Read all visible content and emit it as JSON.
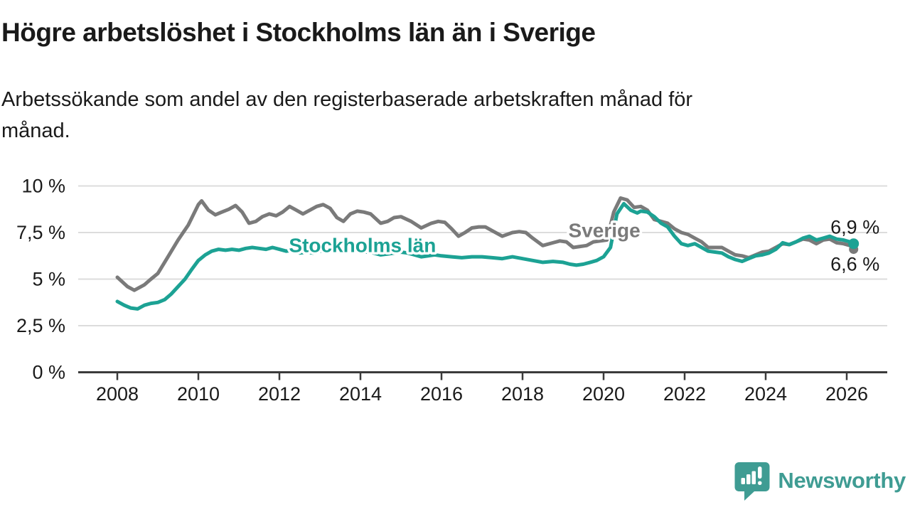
{
  "chart_data": {
    "type": "line",
    "title": "Högre arbetslöshet i Stockholms län än i Sverige",
    "subtitle": "Arbetssökande som andel av den registerbaserade arbetskraften månad för månad.",
    "subtitle_lines": [
      "Arbetssökande som andel av den registerbaserade arbetskraften månad för",
      "månad."
    ],
    "ylim": [
      0,
      10
    ],
    "xlim": [
      2007.04,
      2027.04
    ],
    "grid": true,
    "legend_position": "inline-labels-on-lines",
    "y_ticks": [
      {
        "value": 0,
        "label": "0 %"
      },
      {
        "value": 2.5,
        "label": "2,5 %"
      },
      {
        "value": 5,
        "label": "5 %"
      },
      {
        "value": 7.5,
        "label": "7,5 %"
      },
      {
        "value": 10,
        "label": "10 %"
      }
    ],
    "x_ticks": [
      {
        "value": 2008,
        "label": "2008"
      },
      {
        "value": 2010,
        "label": "2010"
      },
      {
        "value": 2012,
        "label": "2012"
      },
      {
        "value": 2014,
        "label": "2014"
      },
      {
        "value": 2016,
        "label": "2016"
      },
      {
        "value": 2018,
        "label": "2018"
      },
      {
        "value": 2020,
        "label": "2020"
      },
      {
        "value": 2022,
        "label": "2022"
      },
      {
        "value": 2024,
        "label": "2024"
      },
      {
        "value": 2026,
        "label": "2026"
      }
    ],
    "colors": {
      "sverige_line": "#7a7a7a",
      "stockholm_line": "#1ca294",
      "grid": "#dcdcdc",
      "axis": "#3b3b3b",
      "text": "#1a1a1a"
    },
    "series": [
      {
        "name": "Sverige",
        "color": "#7a7a7a",
        "end_label": "6,6 %",
        "end_value": 6.6,
        "label_anchor": {
          "t": 2020.02,
          "v": 7.6
        },
        "points": [
          [
            2008.0,
            5.1
          ],
          [
            2008.25,
            4.6
          ],
          [
            2008.42,
            4.4
          ],
          [
            2008.67,
            4.7
          ],
          [
            2008.83,
            5.0
          ],
          [
            2009.0,
            5.3
          ],
          [
            2009.25,
            6.2
          ],
          [
            2009.5,
            7.1
          ],
          [
            2009.75,
            7.9
          ],
          [
            2010.0,
            9.0
          ],
          [
            2010.08,
            9.2
          ],
          [
            2010.25,
            8.7
          ],
          [
            2010.42,
            8.45
          ],
          [
            2010.58,
            8.6
          ],
          [
            2010.75,
            8.75
          ],
          [
            2010.92,
            8.95
          ],
          [
            2011.08,
            8.6
          ],
          [
            2011.25,
            8.0
          ],
          [
            2011.42,
            8.1
          ],
          [
            2011.58,
            8.35
          ],
          [
            2011.75,
            8.5
          ],
          [
            2011.92,
            8.4
          ],
          [
            2012.08,
            8.6
          ],
          [
            2012.25,
            8.9
          ],
          [
            2012.42,
            8.7
          ],
          [
            2012.58,
            8.5
          ],
          [
            2012.75,
            8.7
          ],
          [
            2012.92,
            8.9
          ],
          [
            2013.08,
            9.0
          ],
          [
            2013.25,
            8.8
          ],
          [
            2013.42,
            8.3
          ],
          [
            2013.58,
            8.1
          ],
          [
            2013.75,
            8.5
          ],
          [
            2013.92,
            8.65
          ],
          [
            2014.08,
            8.6
          ],
          [
            2014.25,
            8.5
          ],
          [
            2014.5,
            8.0
          ],
          [
            2014.67,
            8.1
          ],
          [
            2014.83,
            8.3
          ],
          [
            2015.0,
            8.35
          ],
          [
            2015.25,
            8.1
          ],
          [
            2015.5,
            7.75
          ],
          [
            2015.75,
            8.0
          ],
          [
            2015.92,
            8.1
          ],
          [
            2016.08,
            8.05
          ],
          [
            2016.25,
            7.7
          ],
          [
            2016.42,
            7.3
          ],
          [
            2016.58,
            7.5
          ],
          [
            2016.75,
            7.75
          ],
          [
            2016.92,
            7.8
          ],
          [
            2017.08,
            7.8
          ],
          [
            2017.25,
            7.6
          ],
          [
            2017.5,
            7.3
          ],
          [
            2017.75,
            7.5
          ],
          [
            2017.92,
            7.55
          ],
          [
            2018.08,
            7.5
          ],
          [
            2018.25,
            7.2
          ],
          [
            2018.5,
            6.8
          ],
          [
            2018.75,
            6.95
          ],
          [
            2018.92,
            7.05
          ],
          [
            2019.08,
            7.0
          ],
          [
            2019.25,
            6.7
          ],
          [
            2019.42,
            6.75
          ],
          [
            2019.58,
            6.8
          ],
          [
            2019.75,
            7.0
          ],
          [
            2019.92,
            7.05
          ],
          [
            2020.08,
            7.1
          ],
          [
            2020.25,
            8.6
          ],
          [
            2020.42,
            9.35
          ],
          [
            2020.58,
            9.25
          ],
          [
            2020.75,
            8.85
          ],
          [
            2020.92,
            8.9
          ],
          [
            2021.08,
            8.7
          ],
          [
            2021.25,
            8.2
          ],
          [
            2021.42,
            8.1
          ],
          [
            2021.58,
            8.0
          ],
          [
            2021.75,
            7.7
          ],
          [
            2021.92,
            7.5
          ],
          [
            2022.08,
            7.4
          ],
          [
            2022.25,
            7.2
          ],
          [
            2022.42,
            7.0
          ],
          [
            2022.58,
            6.7
          ],
          [
            2022.75,
            6.7
          ],
          [
            2022.92,
            6.7
          ],
          [
            2023.08,
            6.5
          ],
          [
            2023.25,
            6.3
          ],
          [
            2023.42,
            6.25
          ],
          [
            2023.58,
            6.15
          ],
          [
            2023.75,
            6.3
          ],
          [
            2023.92,
            6.45
          ],
          [
            2024.08,
            6.5
          ],
          [
            2024.25,
            6.7
          ],
          [
            2024.42,
            6.9
          ],
          [
            2024.58,
            6.85
          ],
          [
            2024.75,
            7.0
          ],
          [
            2024.92,
            7.15
          ],
          [
            2025.08,
            7.1
          ],
          [
            2025.25,
            6.9
          ],
          [
            2025.42,
            7.1
          ],
          [
            2025.58,
            7.15
          ],
          [
            2025.75,
            6.95
          ],
          [
            2025.92,
            6.9
          ],
          [
            2026.08,
            6.8
          ],
          [
            2026.17,
            6.6
          ]
        ]
      },
      {
        "name": "Stockholms län",
        "color": "#1ca294",
        "end_label": "6,9 %",
        "end_value": 6.9,
        "label_anchor": {
          "t": 2014.05,
          "v": 6.8
        },
        "points": [
          [
            2008.0,
            3.8
          ],
          [
            2008.17,
            3.6
          ],
          [
            2008.33,
            3.45
          ],
          [
            2008.5,
            3.4
          ],
          [
            2008.67,
            3.6
          ],
          [
            2008.83,
            3.7
          ],
          [
            2009.0,
            3.75
          ],
          [
            2009.17,
            3.9
          ],
          [
            2009.33,
            4.2
          ],
          [
            2009.5,
            4.6
          ],
          [
            2009.67,
            5.0
          ],
          [
            2009.83,
            5.5
          ],
          [
            2010.0,
            6.0
          ],
          [
            2010.17,
            6.3
          ],
          [
            2010.33,
            6.5
          ],
          [
            2010.5,
            6.6
          ],
          [
            2010.67,
            6.55
          ],
          [
            2010.83,
            6.6
          ],
          [
            2011.0,
            6.55
          ],
          [
            2011.17,
            6.65
          ],
          [
            2011.33,
            6.7
          ],
          [
            2011.5,
            6.65
          ],
          [
            2011.67,
            6.6
          ],
          [
            2011.83,
            6.7
          ],
          [
            2012.0,
            6.6
          ],
          [
            2012.17,
            6.5
          ],
          [
            2012.33,
            6.55
          ],
          [
            2012.5,
            6.4
          ],
          [
            2012.67,
            6.45
          ],
          [
            2012.83,
            6.4
          ],
          [
            2013.0,
            6.5
          ],
          [
            2013.17,
            6.55
          ],
          [
            2013.33,
            6.5
          ],
          [
            2013.5,
            6.45
          ],
          [
            2013.67,
            6.5
          ],
          [
            2013.83,
            6.55
          ],
          [
            2014.0,
            6.5
          ],
          [
            2014.17,
            6.45
          ],
          [
            2014.33,
            6.4
          ],
          [
            2014.5,
            6.3
          ],
          [
            2014.67,
            6.35
          ],
          [
            2014.83,
            6.4
          ],
          [
            2015.0,
            6.45
          ],
          [
            2015.17,
            6.4
          ],
          [
            2015.33,
            6.3
          ],
          [
            2015.5,
            6.2
          ],
          [
            2015.67,
            6.25
          ],
          [
            2015.83,
            6.3
          ],
          [
            2016.0,
            6.25
          ],
          [
            2016.25,
            6.2
          ],
          [
            2016.5,
            6.15
          ],
          [
            2016.75,
            6.2
          ],
          [
            2017.0,
            6.2
          ],
          [
            2017.25,
            6.15
          ],
          [
            2017.5,
            6.1
          ],
          [
            2017.75,
            6.2
          ],
          [
            2018.0,
            6.1
          ],
          [
            2018.25,
            6.0
          ],
          [
            2018.5,
            5.9
          ],
          [
            2018.75,
            5.95
          ],
          [
            2019.0,
            5.9
          ],
          [
            2019.17,
            5.8
          ],
          [
            2019.33,
            5.75
          ],
          [
            2019.5,
            5.8
          ],
          [
            2019.67,
            5.9
          ],
          [
            2019.83,
            6.0
          ],
          [
            2020.0,
            6.2
          ],
          [
            2020.17,
            6.7
          ],
          [
            2020.33,
            8.5
          ],
          [
            2020.5,
            9.05
          ],
          [
            2020.67,
            8.7
          ],
          [
            2020.83,
            8.55
          ],
          [
            2020.92,
            8.65
          ],
          [
            2021.08,
            8.6
          ],
          [
            2021.25,
            8.35
          ],
          [
            2021.42,
            8.0
          ],
          [
            2021.58,
            7.8
          ],
          [
            2021.75,
            7.3
          ],
          [
            2021.92,
            6.9
          ],
          [
            2022.08,
            6.8
          ],
          [
            2022.25,
            6.9
          ],
          [
            2022.42,
            6.7
          ],
          [
            2022.58,
            6.5
          ],
          [
            2022.75,
            6.45
          ],
          [
            2022.92,
            6.4
          ],
          [
            2023.08,
            6.2
          ],
          [
            2023.25,
            6.05
          ],
          [
            2023.42,
            5.95
          ],
          [
            2023.58,
            6.1
          ],
          [
            2023.75,
            6.25
          ],
          [
            2023.92,
            6.3
          ],
          [
            2024.08,
            6.4
          ],
          [
            2024.25,
            6.6
          ],
          [
            2024.42,
            6.95
          ],
          [
            2024.58,
            6.85
          ],
          [
            2024.75,
            7.0
          ],
          [
            2024.92,
            7.2
          ],
          [
            2025.08,
            7.3
          ],
          [
            2025.25,
            7.1
          ],
          [
            2025.42,
            7.2
          ],
          [
            2025.58,
            7.3
          ],
          [
            2025.75,
            7.15
          ],
          [
            2025.92,
            7.1
          ],
          [
            2026.08,
            7.0
          ],
          [
            2026.17,
            6.9
          ]
        ]
      }
    ]
  },
  "branding": {
    "text": "Newsworthy",
    "color": "#3f9c93",
    "icon": "newsworthy-speech-bubble-bar-chart-icon"
  }
}
